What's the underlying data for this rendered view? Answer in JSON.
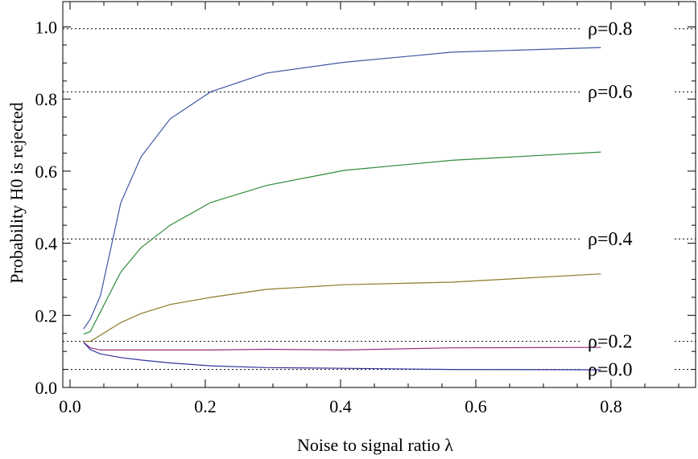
{
  "chart_data": {
    "type": "line",
    "title": "",
    "xlabel": "Noise to signal ratio λ",
    "ylabel": "Probability H0 is rejected",
    "xlim": [
      0,
      0.92
    ],
    "ylim": [
      0,
      1.05
    ],
    "x_ticks": [
      "0.0",
      "0.2",
      "0.4",
      "0.6",
      "0.8"
    ],
    "y_ticks": [
      "0.0",
      "0.2",
      "0.4",
      "0.6",
      "0.8",
      "1.0"
    ],
    "grid": false,
    "series": [
      {
        "color": "#3f57a2",
        "x": [
          0.02,
          0.03,
          0.045,
          0.075,
          0.105,
          0.148,
          0.208,
          0.29,
          0.405,
          0.565,
          0.785
        ],
        "y": [
          0.162,
          0.19,
          0.255,
          0.512,
          0.64,
          0.745,
          0.82,
          0.872,
          0.902,
          0.93,
          0.943
        ]
      },
      {
        "color": "#2e8b3a",
        "x": [
          0.02,
          0.03,
          0.045,
          0.075,
          0.105,
          0.148,
          0.208,
          0.29,
          0.405,
          0.565,
          0.785
        ],
        "y": [
          0.148,
          0.155,
          0.21,
          0.32,
          0.388,
          0.45,
          0.513,
          0.56,
          0.602,
          0.63,
          0.653
        ]
      },
      {
        "color": "#8c7a2a",
        "x": [
          0.02,
          0.03,
          0.045,
          0.075,
          0.105,
          0.148,
          0.208,
          0.29,
          0.405,
          0.565,
          0.785
        ],
        "y": [
          0.128,
          0.128,
          0.145,
          0.18,
          0.205,
          0.23,
          0.25,
          0.272,
          0.285,
          0.292,
          0.315
        ]
      },
      {
        "color": "#9b2f82",
        "x": [
          0.02,
          0.03,
          0.045,
          0.075,
          0.105,
          0.148,
          0.208,
          0.29,
          0.405,
          0.565,
          0.785
        ],
        "y": [
          0.125,
          0.11,
          0.104,
          0.104,
          0.104,
          0.104,
          0.104,
          0.106,
          0.104,
          0.11,
          0.111
        ]
      },
      {
        "color": "#33339e",
        "x": [
          0.02,
          0.03,
          0.045,
          0.075,
          0.105,
          0.148,
          0.208,
          0.29,
          0.405,
          0.565,
          0.785
        ],
        "y": [
          0.125,
          0.105,
          0.093,
          0.083,
          0.076,
          0.068,
          0.06,
          0.055,
          0.053,
          0.05,
          0.049
        ]
      }
    ],
    "reference_lines": [
      {
        "y": 0.995,
        "label": "ρ=0.8"
      },
      {
        "y": 0.82,
        "label": "ρ=0.6"
      },
      {
        "y": 0.412,
        "label": "ρ=0.4"
      },
      {
        "y": 0.128,
        "label": "ρ=0.2"
      },
      {
        "y": 0.05,
        "label": "ρ=0.0"
      }
    ]
  }
}
